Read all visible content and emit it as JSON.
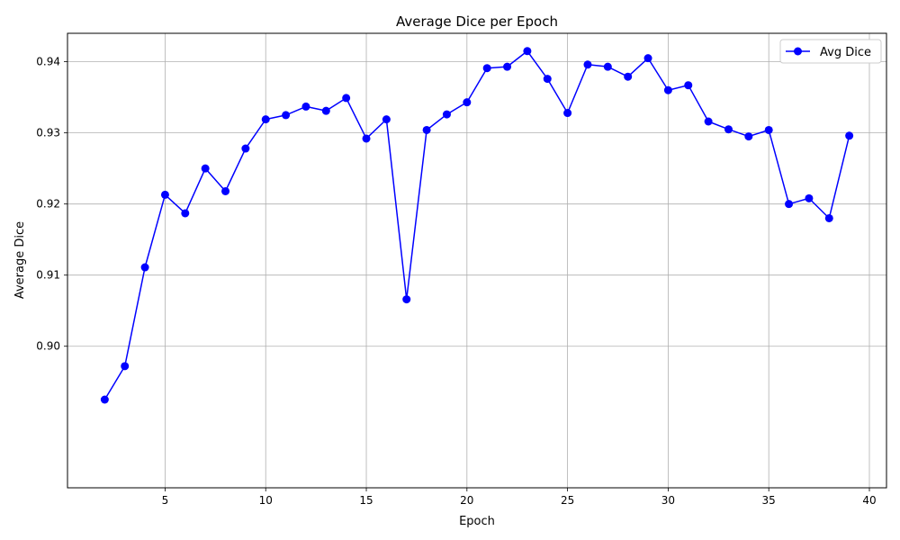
{
  "chart_data": {
    "type": "line",
    "title": "Average Dice per Epoch",
    "xlabel": "Epoch",
    "ylabel": "Average Dice",
    "xlim": [
      0.15,
      40.85
    ],
    "ylim": [
      0.8801,
      0.944
    ],
    "xticks": [
      5,
      10,
      15,
      20,
      25,
      30,
      35,
      40
    ],
    "yticks": [
      0.9,
      0.91,
      0.92,
      0.93,
      0.94
    ],
    "xtick_labels": [
      "5",
      "10",
      "15",
      "20",
      "25",
      "30",
      "35",
      "40"
    ],
    "ytick_labels": [
      "0.90",
      "0.91",
      "0.92",
      "0.93",
      "0.94"
    ],
    "grid": true,
    "legend": {
      "position": "top-right",
      "entries": [
        "Avg Dice"
      ]
    },
    "series": [
      {
        "name": "Avg Dice",
        "color": "#0000ff",
        "marker": "circle",
        "x": [
          2,
          3,
          4,
          5,
          6,
          7,
          8,
          9,
          10,
          11,
          12,
          13,
          14,
          15,
          16,
          17,
          18,
          19,
          20,
          21,
          22,
          23,
          24,
          25,
          26,
          27,
          28,
          29,
          30,
          31,
          32,
          33,
          34,
          35,
          36,
          37,
          38,
          39
        ],
        "y": [
          0.8925,
          0.8972,
          0.9111,
          0.9213,
          0.9187,
          0.925,
          0.9218,
          0.9278,
          0.9319,
          0.9325,
          0.9337,
          0.9331,
          0.9349,
          0.9292,
          0.9319,
          0.9066,
          0.9304,
          0.9326,
          0.9343,
          0.9391,
          0.9393,
          0.9415,
          0.9376,
          0.9328,
          0.9396,
          0.9393,
          0.9379,
          0.9405,
          0.936,
          0.9367,
          0.9316,
          0.9305,
          0.9295,
          0.9304,
          0.92,
          0.9208,
          0.918,
          0.9296
        ]
      }
    ]
  }
}
